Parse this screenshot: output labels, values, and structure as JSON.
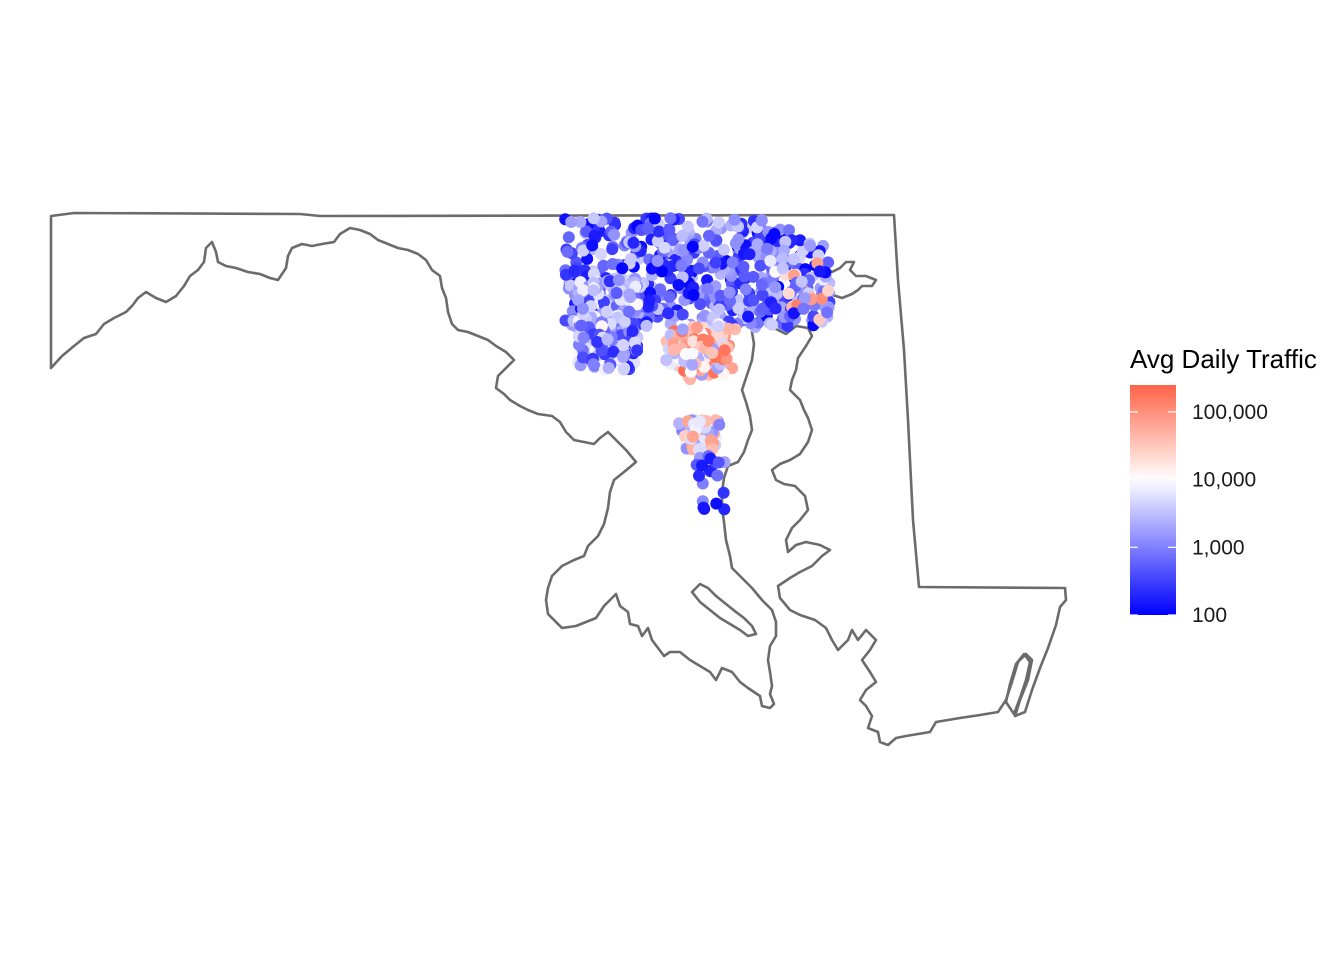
{
  "map": {
    "region": "Maryland",
    "marker": "bridge location",
    "outline_color": "#6b6b6b"
  },
  "legend": {
    "title": "Avg Daily Traffic",
    "scale": "log10",
    "min": 100,
    "max": 250000,
    "colors": {
      "low": "#0000ff",
      "mid": "#ffffff",
      "high": "#ff6347"
    },
    "breaks": [
      {
        "value": 100,
        "label": "100"
      },
      {
        "value": 1000,
        "label": "1,000"
      },
      {
        "value": 10000,
        "label": "10,000"
      },
      {
        "value": 100000,
        "label": "100,000"
      }
    ]
  }
}
